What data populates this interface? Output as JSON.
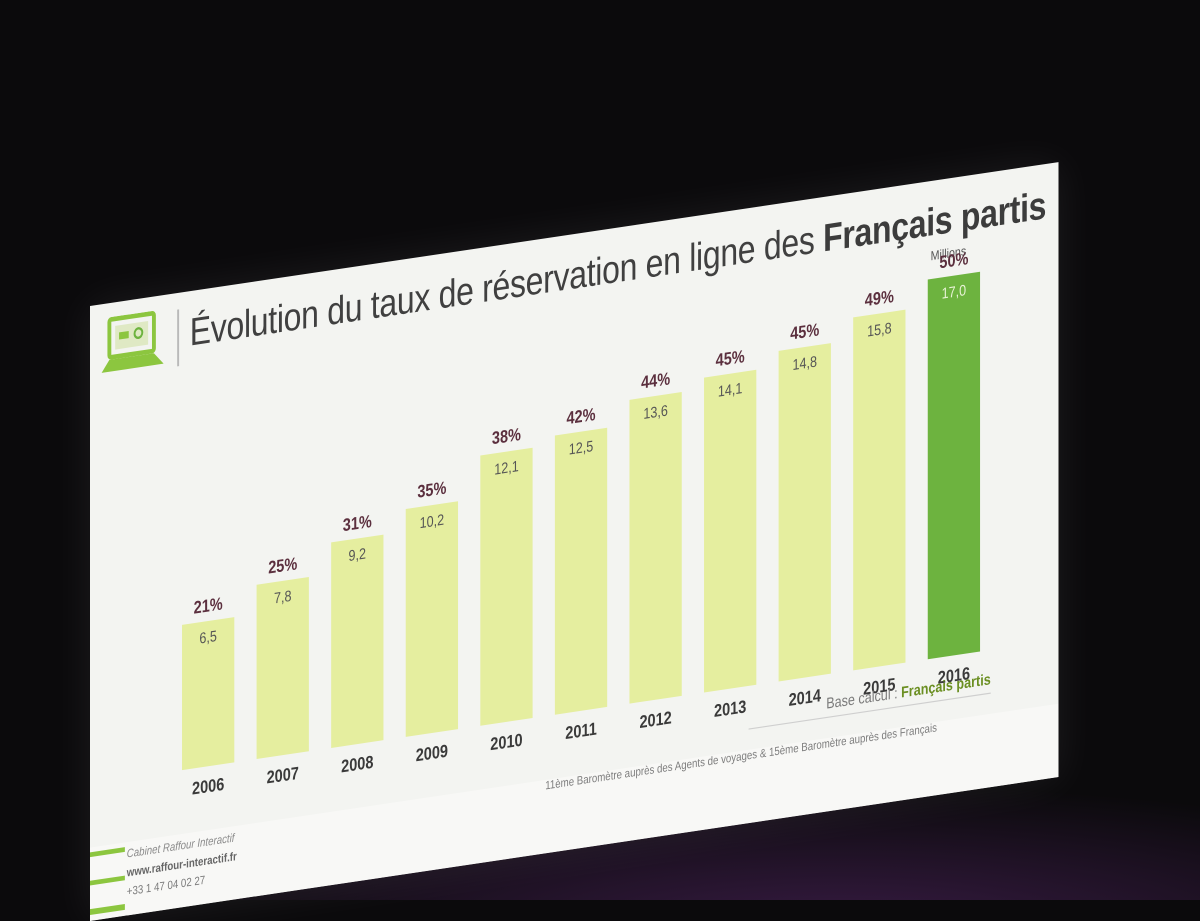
{
  "slide": {
    "title_part1": "Évolution du taux de réservation en ligne des ",
    "title_part2": "Français partis",
    "units": "Millions",
    "base_label": "Base calcul : ",
    "base_value": "Français partis",
    "barometre": "11ème Baromètre auprès des Agents de voyages  &  15ème Baromètre auprès des Français"
  },
  "footer": {
    "company": "Cabinet Raffour Interactif",
    "website": "www.raffour-interactif.fr",
    "phone": "+33 1 47 04 02 27"
  },
  "colors": {
    "bar": "#e5ee9f",
    "bar_highlight": "#6db33f",
    "logo_green": "#8cc63f",
    "percent_text": "#5b2f3e"
  },
  "chart_data": {
    "type": "bar",
    "title": "Évolution du taux de réservation en ligne des Français partis",
    "ylabel": "Millions",
    "categories": [
      "2006",
      "2007",
      "2008",
      "2009",
      "2010",
      "2011",
      "2012",
      "2013",
      "2014",
      "2015",
      "2016"
    ],
    "values": [
      6.5,
      7.8,
      9.2,
      10.2,
      12.1,
      12.5,
      13.6,
      14.1,
      14.8,
      15.8,
      17.0
    ],
    "value_labels": [
      "6,5",
      "7,8",
      "9,2",
      "10,2",
      "12,1",
      "12,5",
      "13,6",
      "14,1",
      "14,8",
      "15,8",
      "17,0"
    ],
    "percent_labels": [
      "21%",
      "25%",
      "31%",
      "35%",
      "38%",
      "42%",
      "44%",
      "45%",
      "45%",
      "49%",
      "50%"
    ],
    "highlight_index": 10,
    "ylim": [
      0,
      18
    ]
  }
}
